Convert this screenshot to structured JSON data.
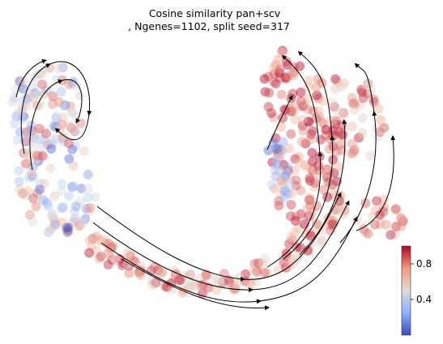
{
  "chart_data": {
    "type": "scatter",
    "title_lines": [
      "Cosine similarity pan+scv",
      ", Ngenes=1102, split seed=317"
    ],
    "xlabel": "",
    "ylabel": "",
    "axes_visible": false,
    "grid": false,
    "legend": "none",
    "overlay": "velocity streamlines with arrowheads",
    "colormap": "coolwarm",
    "colormap_stops": [
      "#3b4cc0",
      "#b5cdf9",
      "#dddcdc",
      "#f4b598",
      "#b40426"
    ],
    "colorbar": {
      "position": "right",
      "range": [
        0.0,
        1.0
      ],
      "ticks": [
        0.4,
        0.8
      ],
      "tick_labels": [
        "0.4",
        "0.8"
      ]
    }
  }
}
